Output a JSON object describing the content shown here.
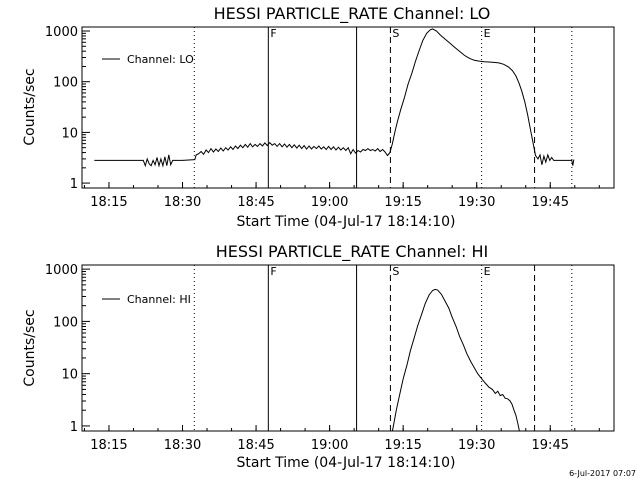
{
  "chart_data": [
    {
      "type": "line",
      "title": "HESSI PARTICLE_RATE Channel: LO",
      "xlabel": "Start Time (04-Jul-17 18:14:10)",
      "ylabel": "Counts/sec",
      "yscale": "log",
      "xlim_minutes": [
        1089.5,
        1198
      ],
      "ylim": [
        0.8,
        1200
      ],
      "x_ticks": [
        {
          "label": "18:15",
          "t": 1095
        },
        {
          "label": "18:30",
          "t": 1110
        },
        {
          "label": "18:45",
          "t": 1125
        },
        {
          "label": "19:00",
          "t": 1140
        },
        {
          "label": "19:15",
          "t": 1155
        },
        {
          "label": "19:30",
          "t": 1170
        },
        {
          "label": "19:45",
          "t": 1185
        }
      ],
      "y_ticks": [
        {
          "label": "1",
          "v": 1
        },
        {
          "label": "10",
          "v": 10
        },
        {
          "label": "100",
          "v": 100
        },
        {
          "label": "1000",
          "v": 1000
        }
      ],
      "legend": {
        "label": "Channel: LO",
        "placement": "top-left"
      },
      "markers": [
        {
          "label": "F",
          "t": 1127.5,
          "style": "solid"
        },
        {
          "label": "",
          "t": 1145.5,
          "style": "solid"
        },
        {
          "label": "S",
          "t": 1152.4,
          "style": "dashed"
        },
        {
          "label": "E",
          "t": 1171.0,
          "style": "dotted"
        },
        {
          "label": "",
          "t": 1181.8,
          "style": "dashed"
        },
        {
          "label": "",
          "t": 1112.4,
          "style": "dotted"
        },
        {
          "label": "",
          "t": 1189.4,
          "style": "dotted"
        }
      ],
      "series": [
        {
          "name": "Channel: LO",
          "points": [
            [
              1092.0,
              2.8
            ],
            [
              1102.0,
              2.8
            ],
            [
              1102.4,
              2.2
            ],
            [
              1102.8,
              3.0
            ],
            [
              1103.2,
              2.4
            ],
            [
              1103.6,
              2.2
            ],
            [
              1104.0,
              2.8
            ],
            [
              1104.4,
              2.3
            ],
            [
              1104.8,
              3.2
            ],
            [
              1105.2,
              2.2
            ],
            [
              1105.6,
              3.0
            ],
            [
              1106.0,
              2.2
            ],
            [
              1106.4,
              3.3
            ],
            [
              1106.8,
              2.2
            ],
            [
              1107.2,
              3.6
            ],
            [
              1107.6,
              2.3
            ],
            [
              1108.0,
              2.8
            ],
            [
              1110.0,
              2.8
            ],
            [
              1112.5,
              2.9
            ],
            [
              1112.8,
              3.6
            ],
            [
              1113.3,
              3.8
            ],
            [
              1113.8,
              4.2
            ],
            [
              1114.3,
              3.7
            ],
            [
              1114.8,
              4.5
            ],
            [
              1115.3,
              4.0
            ],
            [
              1115.8,
              4.8
            ],
            [
              1116.3,
              4.1
            ],
            [
              1116.8,
              4.7
            ],
            [
              1117.3,
              4.2
            ],
            [
              1117.8,
              4.9
            ],
            [
              1118.3,
              4.3
            ],
            [
              1118.8,
              5.0
            ],
            [
              1119.3,
              4.5
            ],
            [
              1119.8,
              5.2
            ],
            [
              1120.3,
              4.6
            ],
            [
              1120.8,
              5.4
            ],
            [
              1121.3,
              4.8
            ],
            [
              1121.8,
              5.6
            ],
            [
              1122.3,
              5.0
            ],
            [
              1122.8,
              5.8
            ],
            [
              1123.3,
              5.1
            ],
            [
              1123.8,
              6.0
            ],
            [
              1124.3,
              5.2
            ],
            [
              1124.8,
              5.8
            ],
            [
              1125.3,
              5.3
            ],
            [
              1125.8,
              6.0
            ],
            [
              1126.3,
              5.4
            ],
            [
              1126.8,
              6.2
            ],
            [
              1127.3,
              5.5
            ],
            [
              1127.8,
              6.3
            ],
            [
              1128.3,
              5.6
            ],
            [
              1128.8,
              6.0
            ],
            [
              1129.3,
              5.3
            ],
            [
              1129.8,
              6.0
            ],
            [
              1130.3,
              5.2
            ],
            [
              1130.8,
              5.9
            ],
            [
              1131.3,
              5.1
            ],
            [
              1131.8,
              5.8
            ],
            [
              1132.3,
              5.0
            ],
            [
              1132.8,
              5.7
            ],
            [
              1133.3,
              4.9
            ],
            [
              1133.8,
              5.6
            ],
            [
              1134.3,
              4.8
            ],
            [
              1134.8,
              5.5
            ],
            [
              1135.3,
              4.7
            ],
            [
              1135.8,
              5.4
            ],
            [
              1136.3,
              4.7
            ],
            [
              1136.8,
              5.3
            ],
            [
              1137.3,
              4.8
            ],
            [
              1137.8,
              5.4
            ],
            [
              1138.3,
              4.7
            ],
            [
              1138.8,
              5.2
            ],
            [
              1139.3,
              4.6
            ],
            [
              1139.8,
              5.3
            ],
            [
              1140.3,
              4.6
            ],
            [
              1140.8,
              5.2
            ],
            [
              1141.3,
              4.5
            ],
            [
              1141.8,
              5.1
            ],
            [
              1142.3,
              4.5
            ],
            [
              1142.8,
              5.0
            ],
            [
              1143.3,
              4.4
            ],
            [
              1143.8,
              5.0
            ],
            [
              1144.3,
              3.8
            ],
            [
              1144.8,
              4.6
            ],
            [
              1145.3,
              3.9
            ],
            [
              1145.8,
              4.4
            ],
            [
              1146.3,
              4.1
            ],
            [
              1146.8,
              4.6
            ],
            [
              1147.3,
              4.4
            ],
            [
              1147.8,
              4.8
            ],
            [
              1148.3,
              4.4
            ],
            [
              1148.8,
              4.6
            ],
            [
              1149.3,
              4.3
            ],
            [
              1149.8,
              4.8
            ],
            [
              1150.3,
              4.2
            ],
            [
              1150.8,
              4.6
            ],
            [
              1151.3,
              4.1
            ],
            [
              1151.8,
              3.5
            ],
            [
              1152.3,
              4.0
            ],
            [
              1152.8,
              6.0
            ],
            [
              1153.3,
              10.0
            ],
            [
              1153.8,
              16.0
            ],
            [
              1154.5,
              28.0
            ],
            [
              1155.3,
              50.0
            ],
            [
              1156.0,
              90.0
            ],
            [
              1156.8,
              150.0
            ],
            [
              1157.5,
              250.0
            ],
            [
              1158.3,
              420.0
            ],
            [
              1159.0,
              650.0
            ],
            [
              1159.8,
              900.0
            ],
            [
              1160.5,
              1050.0
            ],
            [
              1161.0,
              1100.0
            ],
            [
              1161.8,
              1000.0
            ],
            [
              1162.5,
              850.0
            ],
            [
              1163.5,
              700.0
            ],
            [
              1164.5,
              580.0
            ],
            [
              1165.5,
              480.0
            ],
            [
              1166.5,
              400.0
            ],
            [
              1167.5,
              330.0
            ],
            [
              1168.5,
              290.0
            ],
            [
              1169.5,
              265.0
            ],
            [
              1170.5,
              255.0
            ],
            [
              1171.5,
              248.0
            ],
            [
              1172.5,
              245.0
            ],
            [
              1173.5,
              240.0
            ],
            [
              1174.5,
              235.0
            ],
            [
              1175.5,
              220.0
            ],
            [
              1176.5,
              195.0
            ],
            [
              1177.3,
              165.0
            ],
            [
              1178.0,
              130.0
            ],
            [
              1178.6,
              95.0
            ],
            [
              1179.2,
              65.0
            ],
            [
              1179.8,
              40.0
            ],
            [
              1180.4,
              22.0
            ],
            [
              1181.0,
              11.0
            ],
            [
              1181.6,
              5.5
            ],
            [
              1182.0,
              3.5
            ],
            [
              1182.5,
              3.0
            ],
            [
              1182.9,
              3.6
            ],
            [
              1183.3,
              2.3
            ],
            [
              1183.7,
              3.4
            ],
            [
              1184.1,
              2.6
            ],
            [
              1184.5,
              3.6
            ],
            [
              1184.9,
              2.8
            ],
            [
              1185.3,
              3.2
            ],
            [
              1185.7,
              2.8
            ],
            [
              1186.5,
              2.8
            ],
            [
              1187.5,
              2.8
            ],
            [
              1188.5,
              2.8
            ],
            [
              1189.4,
              2.8
            ],
            [
              1189.6,
              2.2
            ],
            [
              1189.8,
              2.9
            ]
          ]
        }
      ]
    },
    {
      "type": "line",
      "title": "HESSI PARTICLE_RATE Channel: HI",
      "xlabel": "Start Time (04-Jul-17 18:14:10)",
      "ylabel": "Counts/sec",
      "yscale": "log",
      "xlim_minutes": [
        1089.5,
        1198
      ],
      "ylim": [
        0.8,
        1200
      ],
      "x_ticks": [
        {
          "label": "18:15",
          "t": 1095
        },
        {
          "label": "18:30",
          "t": 1110
        },
        {
          "label": "18:45",
          "t": 1125
        },
        {
          "label": "19:00",
          "t": 1140
        },
        {
          "label": "19:15",
          "t": 1155
        },
        {
          "label": "19:30",
          "t": 1170
        },
        {
          "label": "19:45",
          "t": 1185
        }
      ],
      "y_ticks": [
        {
          "label": "1",
          "v": 1
        },
        {
          "label": "10",
          "v": 10
        },
        {
          "label": "100",
          "v": 100
        },
        {
          "label": "1000",
          "v": 1000
        }
      ],
      "legend": {
        "label": "Channel: HI",
        "placement": "top-left"
      },
      "markers": [
        {
          "label": "F",
          "t": 1127.5,
          "style": "solid"
        },
        {
          "label": "",
          "t": 1145.5,
          "style": "solid"
        },
        {
          "label": "S",
          "t": 1152.4,
          "style": "dashed"
        },
        {
          "label": "E",
          "t": 1171.0,
          "style": "dotted"
        },
        {
          "label": "",
          "t": 1181.8,
          "style": "dashed"
        },
        {
          "label": "",
          "t": 1112.4,
          "style": "dotted"
        },
        {
          "label": "",
          "t": 1189.4,
          "style": "dotted"
        }
      ],
      "series": [
        {
          "name": "Channel: HI",
          "points": [
            [
              1152.8,
              0.8
            ],
            [
              1153.0,
              1.0
            ],
            [
              1153.6,
              2.0
            ],
            [
              1154.3,
              4.0
            ],
            [
              1155.0,
              8.0
            ],
            [
              1155.8,
              15.0
            ],
            [
              1156.5,
              28.0
            ],
            [
              1157.3,
              50.0
            ],
            [
              1158.0,
              85.0
            ],
            [
              1158.8,
              140.0
            ],
            [
              1159.5,
              220.0
            ],
            [
              1160.3,
              320.0
            ],
            [
              1161.0,
              390.0
            ],
            [
              1161.5,
              410.0
            ],
            [
              1162.0,
              400.0
            ],
            [
              1162.8,
              330.0
            ],
            [
              1163.5,
              250.0
            ],
            [
              1164.3,
              180.0
            ],
            [
              1165.0,
              120.0
            ],
            [
              1165.8,
              80.0
            ],
            [
              1166.5,
              52.0
            ],
            [
              1167.3,
              35.0
            ],
            [
              1168.0,
              24.0
            ],
            [
              1168.8,
              17.0
            ],
            [
              1169.5,
              13.0
            ],
            [
              1170.2,
              10.0
            ],
            [
              1171.0,
              8.0
            ],
            [
              1171.8,
              6.5
            ],
            [
              1172.5,
              5.5
            ],
            [
              1173.2,
              5.0
            ],
            [
              1173.8,
              4.2
            ],
            [
              1174.3,
              4.6
            ],
            [
              1174.8,
              3.8
            ],
            [
              1175.3,
              4.0
            ],
            [
              1175.8,
              3.4
            ],
            [
              1176.3,
              3.3
            ],
            [
              1176.8,
              3.0
            ],
            [
              1177.2,
              2.6
            ],
            [
              1177.6,
              2.0
            ],
            [
              1178.0,
              1.6
            ],
            [
              1178.4,
              1.1
            ],
            [
              1178.7,
              0.8
            ]
          ]
        }
      ]
    }
  ],
  "footer": {
    "timestamp": "6-Jul-2017 07:07"
  },
  "colors": {
    "background": "#ffffff",
    "ink": "#000000"
  }
}
